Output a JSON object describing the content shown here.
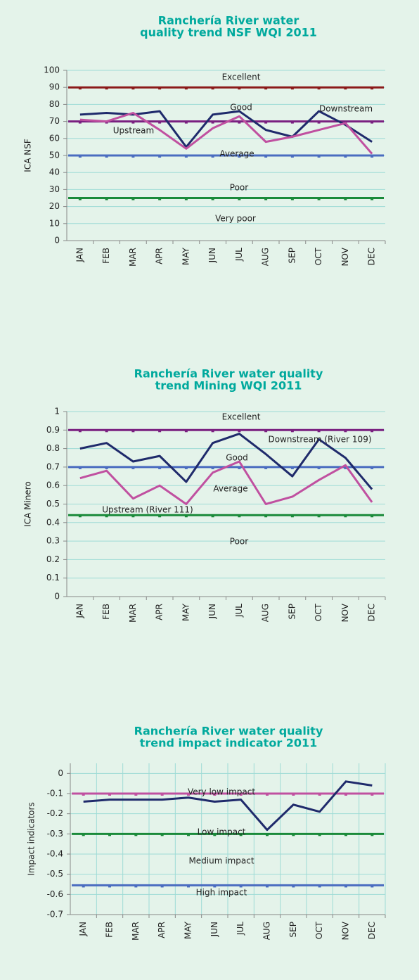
{
  "chart_data": [
    {
      "type": "line",
      "title": [
        "Ranchería River water",
        "quality trend NSF WQI 2011"
      ],
      "ylabel": "ICA  NSF",
      "categories": [
        "JAN",
        "FEB",
        "MAR",
        "APR",
        "MAY",
        "JUN",
        "JUL",
        "AUG",
        "SEP",
        "OCT",
        "NOV",
        "DEC"
      ],
      "ylim": [
        0,
        100
      ],
      "yticks": [
        0,
        10,
        20,
        30,
        40,
        50,
        60,
        70,
        80,
        90,
        100
      ],
      "grid": true,
      "thresholds": [
        {
          "value": 90,
          "color": "#8b1a1a"
        },
        {
          "value": 70,
          "color": "#7a2080"
        },
        {
          "value": 50,
          "color": "#4a6cc0"
        },
        {
          "value": 25,
          "color": "#1a8a3a"
        }
      ],
      "zone_labels": [
        "Excellent",
        "Good",
        "Average",
        "Poor",
        "Very poor"
      ],
      "series": [
        {
          "name": "Downstream",
          "color": "#1f2a6b",
          "values": [
            74,
            75,
            74,
            76,
            55,
            74,
            76,
            65,
            61,
            76,
            68,
            58
          ]
        },
        {
          "name": "Upstream",
          "color": "#c050a0",
          "values": [
            71,
            70,
            75,
            65,
            54,
            66,
            73,
            58,
            61,
            65,
            69,
            51
          ]
        }
      ]
    },
    {
      "type": "line",
      "title": [
        "Ranchería River water quality",
        "trend Mining WQI 2011"
      ],
      "ylabel": "ICA Minero",
      "categories": [
        "JAN",
        "FEB",
        "MAR",
        "APR",
        "MAY",
        "JUN",
        "JUL",
        "AUG",
        "SEP",
        "OCT",
        "NOV",
        "DEC"
      ],
      "ylim": [
        0,
        1
      ],
      "yticks": [
        0,
        0.1,
        0.2,
        0.3,
        0.4,
        0.5,
        0.6,
        0.7,
        0.8,
        0.9,
        1
      ],
      "grid": true,
      "thresholds": [
        {
          "value": 0.9,
          "color": "#7a2080"
        },
        {
          "value": 0.7,
          "color": "#4a6cc0"
        },
        {
          "value": 0.44,
          "color": "#1a8a3a"
        }
      ],
      "zone_labels": [
        "Excellent",
        "Good",
        "Average",
        "Poor"
      ],
      "series": [
        {
          "name": "Downstream (River 109)",
          "color": "#1f2a6b",
          "values": [
            0.8,
            0.83,
            0.73,
            0.76,
            0.62,
            0.83,
            0.88,
            0.77,
            0.65,
            0.85,
            0.75,
            0.58
          ]
        },
        {
          "name": "Upstream (River 111)",
          "color": "#c050a0",
          "values": [
            0.64,
            0.68,
            0.53,
            0.6,
            0.5,
            0.67,
            0.73,
            0.5,
            0.54,
            0.63,
            0.71,
            0.51
          ]
        }
      ]
    },
    {
      "type": "line",
      "title": [
        "Ranchería River water quality",
        "trend impact indicator 2011"
      ],
      "ylabel": "Impact indicators",
      "categories": [
        "JAN",
        "FEB",
        "MAR",
        "APR",
        "MAY",
        "JUN",
        "JUL",
        "AUG",
        "SEP",
        "OCT",
        "NOV",
        "DEC"
      ],
      "ylim": [
        -0.7,
        0.05
      ],
      "yticks": [
        0,
        -0.1,
        -0.2,
        -0.3,
        -0.4,
        -0.5,
        -0.6,
        -0.7
      ],
      "grid": true,
      "xgrid": true,
      "thresholds": [
        {
          "value": -0.1,
          "color": "#c050a0"
        },
        {
          "value": -0.3,
          "color": "#1a8a3a"
        },
        {
          "value": -0.555,
          "color": "#4a6cc0"
        }
      ],
      "zone_labels": [
        "Very low impact",
        "Low impact",
        "Medium impact",
        "High impact"
      ],
      "series": [
        {
          "color": "#1f2a6b",
          "values": [
            -0.14,
            -0.13,
            -0.13,
            -0.13,
            -0.12,
            -0.14,
            -0.13,
            -0.28,
            -0.155,
            -0.19,
            -0.04,
            -0.06
          ]
        }
      ]
    }
  ]
}
